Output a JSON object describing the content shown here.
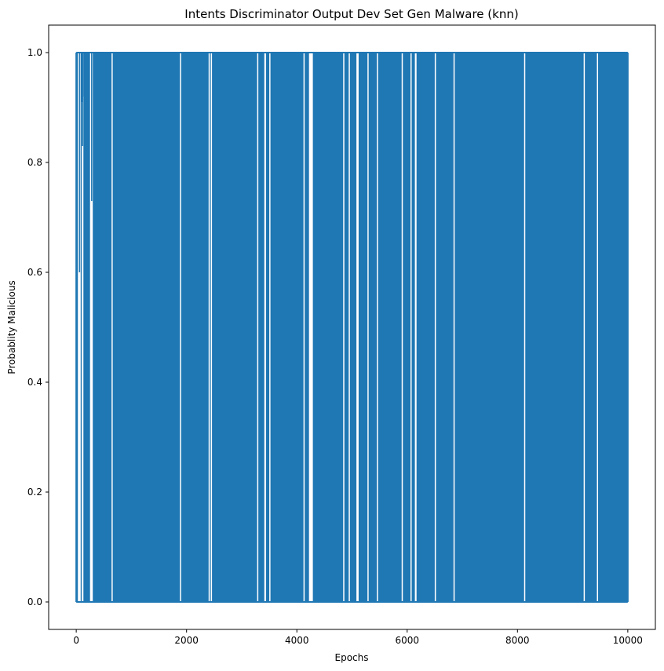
{
  "chart_data": {
    "type": "line",
    "title": "Intents Discriminator Output Dev Set Gen Malware (knn)",
    "xlabel": "Epochs",
    "ylabel": "Probablity Malicious",
    "xlim": [
      -500,
      10500
    ],
    "ylim": [
      -0.05,
      1.05
    ],
    "xticks": [
      0,
      2000,
      4000,
      6000,
      8000,
      10000
    ],
    "xtick_labels": [
      "0",
      "2000",
      "4000",
      "6000",
      "8000",
      "10000"
    ],
    "yticks": [
      0.0,
      0.2,
      0.4,
      0.6,
      0.8,
      1.0
    ],
    "ytick_labels": [
      "0.0",
      "0.2",
      "0.4",
      "0.6",
      "0.8",
      "1.0"
    ],
    "grid": false,
    "legend": "none",
    "series": [
      {
        "color": "#1f77b4",
        "description": "10000 epochs; values oscillate between ~0 and ~1 almost every epoch",
        "x_range": [
          0,
          10000
        ],
        "y_min": 0.0,
        "y_max": 1.0,
        "gaps_at_one": [
          [
            30,
            80
          ],
          [
            100,
            130
          ],
          [
            250,
            300
          ],
          [
            640,
            650
          ],
          [
            1880,
            1890
          ],
          [
            2400,
            2410
          ],
          [
            2440,
            2460
          ],
          [
            3280,
            3300
          ],
          [
            3410,
            3440
          ],
          [
            3500,
            3520
          ],
          [
            4120,
            4140
          ],
          [
            4220,
            4290
          ],
          [
            4840,
            4860
          ],
          [
            4940,
            4960
          ],
          [
            5080,
            5120
          ],
          [
            5280,
            5300
          ],
          [
            5450,
            5470
          ],
          [
            5900,
            5920
          ],
          [
            6060,
            6080
          ],
          [
            6140,
            6170
          ],
          [
            6500,
            6520
          ],
          [
            6840,
            6860
          ],
          [
            8120,
            8130
          ],
          [
            9200,
            9210
          ],
          [
            9440,
            9460
          ]
        ],
        "dips": [
          {
            "x": 60,
            "y": 0.6
          },
          {
            "x": 95,
            "y": 0.91
          },
          {
            "x": 115,
            "y": 0.83
          },
          {
            "x": 140,
            "y": 0.92
          },
          {
            "x": 280,
            "y": 0.73
          }
        ]
      }
    ]
  }
}
